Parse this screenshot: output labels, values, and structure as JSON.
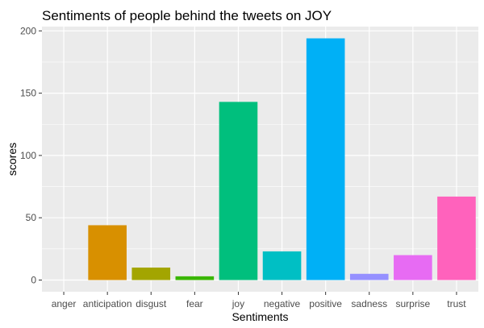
{
  "chart_data": {
    "type": "bar",
    "title": "Sentiments of people behind the tweets on JOY",
    "xlabel": "Sentiments",
    "ylabel": "scores",
    "categories": [
      "anger",
      "anticipation",
      "disgust",
      "fear",
      "joy",
      "negative",
      "positive",
      "sadness",
      "surprise",
      "trust"
    ],
    "values": [
      0,
      44,
      10,
      3,
      143,
      23,
      194,
      5,
      20,
      67
    ],
    "colors": [
      "#F8766D",
      "#D89000",
      "#A3A500",
      "#39B600",
      "#00BF7D",
      "#00BFC4",
      "#00B0F6",
      "#9590FF",
      "#E76BF3",
      "#FF62BC"
    ],
    "ylim": [
      0,
      205
    ],
    "yticks": [
      0,
      50,
      100,
      150,
      200
    ],
    "grid": true,
    "panel_background": "#EBEBEB",
    "legend": "none"
  }
}
